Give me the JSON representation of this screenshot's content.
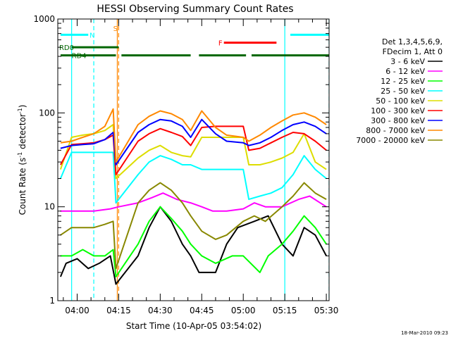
{
  "chart_data": {
    "type": "line",
    "title": "HESSI Observing Summary Count Rates",
    "xlabel": "Start Time (10-Apr-05 03:54:02)",
    "ylabel_main": "Count Rate (s",
    "ylabel_sup1": "-1",
    "ylabel_mid": " detector",
    "ylabel_sup2": "-1",
    "ylabel_end": ")",
    "yscale": "log",
    "ylim": [
      1,
      1000
    ],
    "xlim_min": [
      -1,
      97
    ],
    "x_ticks": [
      {
        "label": "04:00",
        "min": 6
      },
      {
        "label": "04:15",
        "min": 21
      },
      {
        "label": "04:30",
        "min": 36
      },
      {
        "label": "04:45",
        "min": 51
      },
      {
        "label": "05:00",
        "min": 66
      },
      {
        "label": "05:15",
        "min": 81
      },
      {
        "label": "05:30",
        "min": 96
      }
    ],
    "y_ticks": [
      {
        "label": "1",
        "value": 1
      },
      {
        "label": "10",
        "value": 10
      },
      {
        "label": "100",
        "value": 100
      },
      {
        "label": "1000",
        "value": 1000
      }
    ],
    "legend_header1": "Det 1,3,4,5,6,9,",
    "legend_header2": "FDecim 1, Att 0",
    "series": [
      {
        "name": "3 - 6 keV",
        "color": "#000000",
        "points": [
          [
            0,
            1.8
          ],
          [
            2,
            2.5
          ],
          [
            6,
            2.8
          ],
          [
            10,
            2.2
          ],
          [
            14,
            2.5
          ],
          [
            18,
            3.0
          ],
          [
            20,
            1.5
          ],
          [
            28,
            3
          ],
          [
            32,
            6
          ],
          [
            36,
            10
          ],
          [
            40,
            7
          ],
          [
            44,
            4
          ],
          [
            47,
            3
          ],
          [
            50,
            2
          ],
          [
            56,
            2
          ],
          [
            60,
            4
          ],
          [
            64,
            6
          ],
          [
            70,
            7
          ],
          [
            75,
            8
          ],
          [
            80,
            4
          ],
          [
            84,
            3
          ],
          [
            88,
            6
          ],
          [
            92,
            5
          ],
          [
            96,
            3
          ]
        ]
      },
      {
        "name": "6 - 12 keV",
        "color": "#ff00ff",
        "points": [
          [
            0,
            9
          ],
          [
            6,
            9
          ],
          [
            12,
            9
          ],
          [
            18,
            9.5
          ],
          [
            21,
            10
          ],
          [
            28,
            11
          ],
          [
            33,
            12.5
          ],
          [
            37,
            14
          ],
          [
            42,
            12
          ],
          [
            47,
            11
          ],
          [
            51,
            10
          ],
          [
            55,
            9
          ],
          [
            60,
            9
          ],
          [
            66,
            9.5
          ],
          [
            70,
            11
          ],
          [
            74,
            10
          ],
          [
            80,
            10
          ],
          [
            86,
            12
          ],
          [
            90,
            13
          ],
          [
            96,
            10
          ]
        ]
      },
      {
        "name": "12 - 25 keV",
        "color": "#00ff00",
        "points": [
          [
            0,
            3
          ],
          [
            4,
            3
          ],
          [
            8,
            3.5
          ],
          [
            12,
            3
          ],
          [
            16,
            3
          ],
          [
            19,
            3.5
          ],
          [
            20,
            1.8
          ],
          [
            28,
            4
          ],
          [
            32,
            7
          ],
          [
            36,
            10
          ],
          [
            40,
            7.5
          ],
          [
            44,
            5.5
          ],
          [
            47,
            4
          ],
          [
            51,
            3
          ],
          [
            56,
            2.5
          ],
          [
            62,
            3
          ],
          [
            66,
            3
          ],
          [
            72,
            2
          ],
          [
            75,
            3
          ],
          [
            80,
            4
          ],
          [
            84,
            5.5
          ],
          [
            88,
            8
          ],
          [
            92,
            6
          ],
          [
            96,
            4
          ]
        ]
      },
      {
        "name": "25 - 50 keV",
        "color": "#00ffff",
        "points": [
          [
            0,
            20
          ],
          [
            4,
            38
          ],
          [
            8,
            38
          ],
          [
            12,
            38
          ],
          [
            16,
            38
          ],
          [
            19,
            38
          ],
          [
            20,
            11
          ],
          [
            28,
            22
          ],
          [
            32,
            30
          ],
          [
            36,
            35
          ],
          [
            40,
            32
          ],
          [
            44,
            28
          ],
          [
            47,
            28
          ],
          [
            51,
            25
          ],
          [
            56,
            25
          ],
          [
            60,
            25
          ],
          [
            66,
            25
          ],
          [
            68,
            12
          ],
          [
            72,
            13
          ],
          [
            76,
            14
          ],
          [
            80,
            16
          ],
          [
            84,
            22
          ],
          [
            88,
            35
          ],
          [
            92,
            25
          ],
          [
            96,
            20
          ]
        ]
      },
      {
        "name": "50 - 100 keV",
        "color": "#dddd00",
        "points": [
          [
            0,
            25
          ],
          [
            4,
            55
          ],
          [
            8,
            58
          ],
          [
            12,
            60
          ],
          [
            16,
            65
          ],
          [
            19,
            75
          ],
          [
            20,
            20
          ],
          [
            28,
            33
          ],
          [
            32,
            40
          ],
          [
            36,
            45
          ],
          [
            40,
            38
          ],
          [
            44,
            35
          ],
          [
            47,
            34
          ],
          [
            51,
            55
          ],
          [
            56,
            55
          ],
          [
            60,
            55
          ],
          [
            66,
            55
          ],
          [
            68,
            28
          ],
          [
            72,
            28
          ],
          [
            76,
            30
          ],
          [
            80,
            33
          ],
          [
            84,
            38
          ],
          [
            88,
            60
          ],
          [
            92,
            30
          ],
          [
            96,
            25
          ]
        ]
      },
      {
        "name": "100 - 300 keV",
        "color": "#ff0000",
        "points": [
          [
            0,
            28
          ],
          [
            4,
            46
          ],
          [
            8,
            47
          ],
          [
            12,
            48
          ],
          [
            16,
            52
          ],
          [
            19,
            58
          ],
          [
            20,
            22
          ],
          [
            28,
            50
          ],
          [
            32,
            60
          ],
          [
            36,
            68
          ],
          [
            40,
            62
          ],
          [
            44,
            56
          ],
          [
            47,
            45
          ],
          [
            51,
            70
          ],
          [
            56,
            72
          ],
          [
            60,
            72
          ],
          [
            66,
            72
          ],
          [
            68,
            40
          ],
          [
            72,
            42
          ],
          [
            76,
            48
          ],
          [
            80,
            55
          ],
          [
            84,
            62
          ],
          [
            88,
            60
          ],
          [
            92,
            50
          ],
          [
            96,
            40
          ]
        ]
      },
      {
        "name": "300 - 800 keV",
        "color": "#0000ff",
        "points": [
          [
            0,
            42
          ],
          [
            4,
            45
          ],
          [
            8,
            46
          ],
          [
            12,
            47
          ],
          [
            16,
            52
          ],
          [
            19,
            62
          ],
          [
            20,
            28
          ],
          [
            28,
            62
          ],
          [
            32,
            75
          ],
          [
            36,
            85
          ],
          [
            40,
            82
          ],
          [
            44,
            72
          ],
          [
            47,
            55
          ],
          [
            51,
            85
          ],
          [
            56,
            60
          ],
          [
            60,
            50
          ],
          [
            66,
            48
          ],
          [
            68,
            45
          ],
          [
            72,
            48
          ],
          [
            76,
            55
          ],
          [
            80,
            65
          ],
          [
            84,
            75
          ],
          [
            88,
            80
          ],
          [
            92,
            72
          ],
          [
            96,
            60
          ]
        ]
      },
      {
        "name": "800 - 7000 keV",
        "color": "#ff8800",
        "points": [
          [
            0,
            48
          ],
          [
            4,
            50
          ],
          [
            8,
            55
          ],
          [
            12,
            60
          ],
          [
            16,
            72
          ],
          [
            19,
            110
          ],
          [
            20,
            30
          ],
          [
            28,
            75
          ],
          [
            32,
            92
          ],
          [
            36,
            105
          ],
          [
            40,
            98
          ],
          [
            44,
            85
          ],
          [
            47,
            65
          ],
          [
            51,
            105
          ],
          [
            56,
            70
          ],
          [
            60,
            58
          ],
          [
            66,
            55
          ],
          [
            68,
            50
          ],
          [
            72,
            58
          ],
          [
            76,
            70
          ],
          [
            80,
            82
          ],
          [
            84,
            95
          ],
          [
            88,
            100
          ],
          [
            92,
            90
          ],
          [
            96,
            75
          ]
        ]
      },
      {
        "name": "7000 - 20000 keV",
        "color": "#888800",
        "points": [
          [
            0,
            5
          ],
          [
            4,
            6
          ],
          [
            8,
            6
          ],
          [
            12,
            6
          ],
          [
            16,
            6.5
          ],
          [
            19,
            7
          ],
          [
            20,
            2.2
          ],
          [
            28,
            11
          ],
          [
            32,
            15
          ],
          [
            36,
            18
          ],
          [
            40,
            15
          ],
          [
            44,
            11
          ],
          [
            47,
            8
          ],
          [
            51,
            5.5
          ],
          [
            56,
            4.5
          ],
          [
            60,
            5
          ],
          [
            66,
            7
          ],
          [
            70,
            8
          ],
          [
            74,
            7
          ],
          [
            80,
            10
          ],
          [
            84,
            13
          ],
          [
            88,
            18
          ],
          [
            92,
            14
          ],
          [
            96,
            12
          ]
        ]
      }
    ],
    "annotations": [
      {
        "label": "N",
        "color": "#00ffff",
        "y": 680
      },
      {
        "label": "S",
        "color": "#ff8800",
        "y": 800
      },
      {
        "label": "F",
        "color": "#ff0000",
        "y": 560
      },
      {
        "label": "RD0",
        "color": "#006600",
        "y": 500
      },
      {
        "label": "RD4",
        "color": "#006600",
        "y": 410
      }
    ],
    "bar_segments": [
      {
        "name": "N",
        "color": "#00ffff",
        "y": 680,
        "ranges": [
          [
            0,
            10
          ],
          [
            83,
            97
          ]
        ]
      },
      {
        "name": "F",
        "color": "#ff0000",
        "y": 560,
        "ranges": [
          [
            59,
            78
          ]
        ]
      },
      {
        "name": "RD0",
        "color": "#006600",
        "y": 500,
        "ranges": [
          [
            4,
            21
          ]
        ]
      },
      {
        "name": "RD4",
        "color": "#006600",
        "y": 410,
        "ranges": [
          [
            0,
            20
          ],
          [
            22,
            47
          ],
          [
            50,
            67
          ],
          [
            69,
            97
          ]
        ]
      }
    ],
    "vlines": [
      {
        "color": "#00ffff",
        "x": 4,
        "style": "solid"
      },
      {
        "color": "#00ffff",
        "x": 12,
        "style": "dashed"
      },
      {
        "color": "#ff8800",
        "x": 20.5,
        "style": "solid"
      },
      {
        "color": "#ff8800",
        "x": 21,
        "style": "dashed"
      },
      {
        "color": "#00ffff",
        "x": 81,
        "style": "solid"
      },
      {
        "color": "#00ffff",
        "x": 97,
        "style": "dashed"
      }
    ]
  },
  "footer": {
    "timestamp": "18-Mar-2010 09:23"
  }
}
